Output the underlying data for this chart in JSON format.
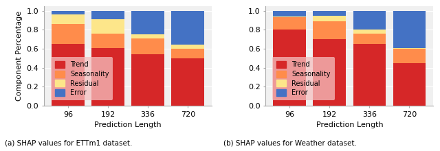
{
  "categories": [
    96,
    192,
    336,
    720
  ],
  "etm1": {
    "trend": [
      0.65,
      0.61,
      0.54,
      0.5
    ],
    "seasonality": [
      0.21,
      0.15,
      0.17,
      0.1
    ],
    "residual": [
      0.1,
      0.15,
      0.04,
      0.04
    ],
    "error": [
      0.04,
      0.09,
      0.25,
      0.36
    ]
  },
  "weather": {
    "trend": [
      0.8,
      0.7,
      0.65,
      0.45
    ],
    "seasonality": [
      0.13,
      0.19,
      0.11,
      0.15
    ],
    "residual": [
      0.01,
      0.06,
      0.04,
      0.01
    ],
    "error": [
      0.06,
      0.05,
      0.2,
      0.39
    ]
  },
  "colors": {
    "trend": "#d62728",
    "seasonality": "#ff8c4b",
    "residual": "#fde68a",
    "error": "#4472c4"
  },
  "ylabel": "Component Percentage",
  "xlabel": "Prediction Length",
  "ylim": [
    0.0,
    1.05
  ],
  "yticks": [
    0.0,
    0.2,
    0.4,
    0.6,
    0.8,
    1.0
  ],
  "caption_left": "(a) SHAP values for ETTm1 dataset.",
  "caption_right": "(b) SHAP values for Weather dataset.",
  "legend_labels": [
    "Trend",
    "Seasonality",
    "Residual",
    "Error"
  ],
  "legend_keys": [
    "trend",
    "seasonality",
    "residual",
    "error"
  ],
  "bar_width": 0.82,
  "bg_color": "#f0f0f0",
  "legend_facecolor": "#f5c0c0"
}
